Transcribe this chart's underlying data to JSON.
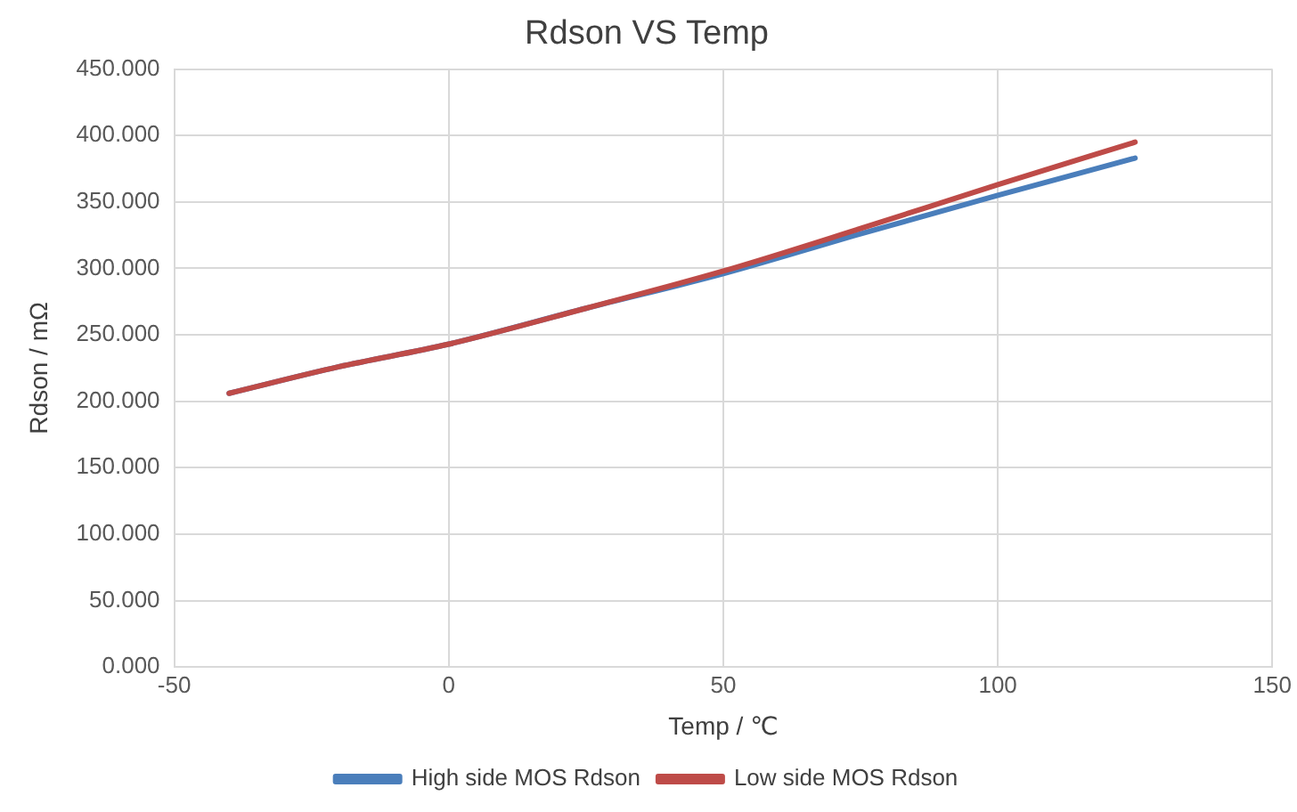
{
  "chart_data": {
    "type": "line",
    "title": "Rdson VS Temp",
    "xlabel": "Temp / ℃",
    "ylabel": "Rdson / mΩ",
    "xlim": [
      -50,
      150
    ],
    "xticks": [
      -50,
      0,
      50,
      100,
      150
    ],
    "ylim": [
      0,
      450
    ],
    "yticks": [
      {
        "value": 0,
        "label": "0.000"
      },
      {
        "value": 50,
        "label": "50.000"
      },
      {
        "value": 100,
        "label": "100.000"
      },
      {
        "value": 150,
        "label": "150.000"
      },
      {
        "value": 200,
        "label": "200.000"
      },
      {
        "value": 250,
        "label": "250.000"
      },
      {
        "value": 300,
        "label": "300.000"
      },
      {
        "value": 350,
        "label": "350.000"
      },
      {
        "value": 400,
        "label": "400.000"
      },
      {
        "value": 450,
        "label": "450.000"
      }
    ],
    "grid": true,
    "legend": "bottom",
    "marker": "none",
    "line_style": "solid",
    "x": [
      -40,
      -20,
      0,
      25,
      50,
      75,
      100,
      125
    ],
    "series": [
      {
        "name": "High side MOS Rdson",
        "color": "#4a7ebb",
        "values": [
          206,
          226,
          243,
          270,
          296,
          326,
          355,
          383
        ]
      },
      {
        "name": "Low side MOS Rdson",
        "color": "#be4b48",
        "values": [
          206,
          226,
          243,
          270,
          298,
          330,
          363,
          395
        ]
      }
    ]
  }
}
